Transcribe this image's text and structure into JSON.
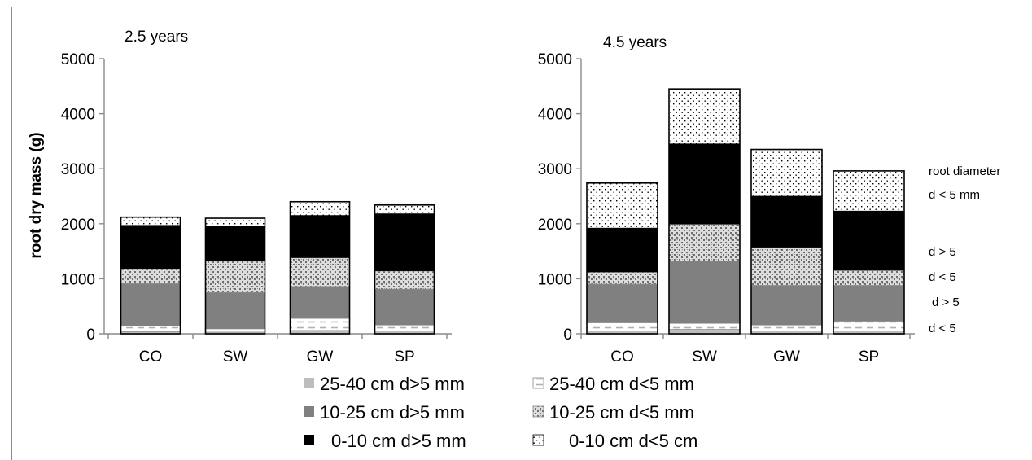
{
  "chart_data": [
    {
      "type": "bar",
      "stacked": true,
      "title": "2.5 years",
      "ylabel": "root dry mass (g)",
      "ylim": [
        0,
        5000
      ],
      "yticks": [
        0,
        1000,
        2000,
        3000,
        4000,
        5000
      ],
      "categories": [
        "CO",
        "SW",
        "GW",
        "SP"
      ],
      "series": [
        {
          "name": "25-40 cm d>5 mm",
          "values": [
            40,
            30,
            60,
            50
          ]
        },
        {
          "name": "25-40 cm d<5 mm",
          "values": [
            110,
            60,
            220,
            110
          ]
        },
        {
          "name": "10-25 cm d>5 mm",
          "values": [
            760,
            660,
            580,
            650
          ]
        },
        {
          "name": "10-25 cm d<5 mm",
          "values": [
            260,
            570,
            520,
            330
          ]
        },
        {
          "name": "0-10 cm d>5 mm",
          "values": [
            800,
            630,
            770,
            1040
          ]
        },
        {
          "name": "0-10 cm d<5 cm",
          "values": [
            150,
            150,
            250,
            160
          ]
        }
      ]
    },
    {
      "type": "bar",
      "stacked": true,
      "title": "4.5 years",
      "ylim": [
        0,
        5000
      ],
      "yticks": [
        0,
        1000,
        2000,
        3000,
        4000,
        5000
      ],
      "categories": [
        "CO",
        "SW",
        "GW",
        "SP"
      ],
      "series": [
        {
          "name": "25-40 cm d>5 mm",
          "values": [
            50,
            80,
            50,
            50
          ]
        },
        {
          "name": "25-40 cm d<5 mm",
          "values": [
            150,
            110,
            110,
            180
          ]
        },
        {
          "name": "10-25 cm d>5 mm",
          "values": [
            700,
            1130,
            720,
            650
          ]
        },
        {
          "name": "10-25 cm d<5 mm",
          "values": [
            220,
            670,
            690,
            270
          ]
        },
        {
          "name": "0-10 cm d>5 mm",
          "values": [
            800,
            1460,
            930,
            1080
          ]
        },
        {
          "name": "0-10 cm d<5 cm",
          "values": [
            820,
            1000,
            850,
            730
          ]
        }
      ]
    }
  ],
  "side_notes": [
    "root diameter",
    "d < 5 mm",
    "d > 5",
    "d < 5",
    "d > 5",
    "d < 5"
  ],
  "colors": {
    "s0": "#bdbdbd",
    "s1": "#ffffff",
    "s2": "#808080",
    "s3": "#cfcfcf",
    "s4": "#000000",
    "s5": "#ffffff",
    "axis": "#8a8a8a"
  }
}
